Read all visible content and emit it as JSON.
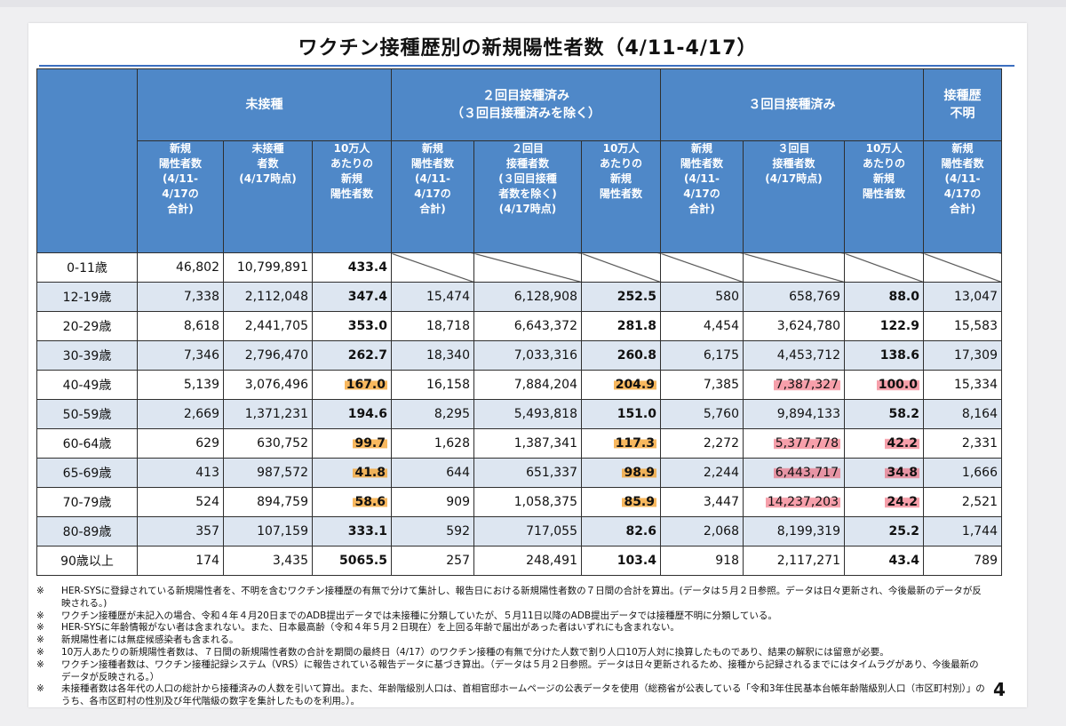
{
  "title": "ワクチン接種歴別の新規陽性者数（4/11-4/17）",
  "groups": [
    "未接種",
    "２回目接種済み\n（３回目接種済みを除く）",
    "３回目接種済み",
    "接種歴\n不明"
  ],
  "subheaders": [
    "新規\n陽性者数\n(4/11-\n4/17の\n合計)",
    "未接種\n者数\n(4/17時点)",
    "10万人\nあたりの\n新規\n陽性者数",
    "新規\n陽性者数\n(4/11-\n4/17の\n合計)",
    "２回目\n接種者数\n(３回目接種\n者数を除く)\n(4/17時点)",
    "10万人\nあたりの\n新規\n陽性者数",
    "新規\n陽性者数\n(4/11-\n4/17の\n合計)",
    "３回目\n接種者数\n(4/17時点)",
    "10万人\nあたりの\n新規\n陽性者数",
    "新規\n陽性者数\n(4/11-\n4/17の\n合計)"
  ],
  "rows": [
    {
      "age": "0-11歳",
      "v": [
        "46,802",
        "10,799,891",
        "433.4",
        "",
        "",
        "",
        "",
        "",
        "",
        ""
      ]
    },
    {
      "age": "12-19歳",
      "v": [
        "7,338",
        "2,112,048",
        "347.4",
        "15,474",
        "6,128,908",
        "252.5",
        "580",
        "658,769",
        "88.0",
        "13,047"
      ]
    },
    {
      "age": "20-29歳",
      "v": [
        "8,618",
        "2,441,705",
        "353.0",
        "18,718",
        "6,643,372",
        "281.8",
        "4,454",
        "3,624,780",
        "122.9",
        "15,583"
      ]
    },
    {
      "age": "30-39歳",
      "v": [
        "7,346",
        "2,796,470",
        "262.7",
        "18,340",
        "7,033,316",
        "260.8",
        "6,175",
        "4,453,712",
        "138.6",
        "17,309"
      ]
    },
    {
      "age": "40-49歳",
      "v": [
        "5,139",
        "3,076,496",
        "167.0",
        "16,158",
        "7,884,204",
        "204.9",
        "7,385",
        "7,387,327",
        "100.0",
        "15,334"
      ]
    },
    {
      "age": "50-59歳",
      "v": [
        "2,669",
        "1,371,231",
        "194.6",
        "8,295",
        "5,493,818",
        "151.0",
        "5,760",
        "9,894,133",
        "58.2",
        "8,164"
      ]
    },
    {
      "age": "60-64歳",
      "v": [
        "629",
        "630,752",
        "99.7",
        "1,628",
        "1,387,341",
        "117.3",
        "2,272",
        "5,377,778",
        "42.2",
        "2,331"
      ]
    },
    {
      "age": "65-69歳",
      "v": [
        "413",
        "987,572",
        "41.8",
        "644",
        "651,337",
        "98.9",
        "2,244",
        "6,443,717",
        "34.8",
        "1,666"
      ]
    },
    {
      "age": "70-79歳",
      "v": [
        "524",
        "894,759",
        "58.6",
        "909",
        "1,058,375",
        "85.9",
        "3,447",
        "14,237,203",
        "24.2",
        "2,521"
      ]
    },
    {
      "age": "80-89歳",
      "v": [
        "357",
        "107,159",
        "333.1",
        "592",
        "717,055",
        "82.6",
        "2,068",
        "8,199,319",
        "25.2",
        "1,744"
      ]
    },
    {
      "age": "90歳以上",
      "v": [
        "174",
        "3,435",
        "5065.5",
        "257",
        "248,491",
        "103.4",
        "918",
        "2,117,271",
        "43.4",
        "789"
      ]
    }
  ],
  "highlight_colors": {
    "orange": "#f5a028",
    "red": "#ee5064"
  },
  "notes": [
    "HER-SYSに登録されている新規陽性者を、不明を含むワクチン接種歴の有無で分けて集計し、報告日における新規陽性者数の７日間の合計を算出。(データは５月２日参照。データは日々更新され、今後最新のデータが反映される。)",
    "ワクチン接種歴が未記入の場合、令和４年４月20日までのADB提出データでは未接種に分類していたが、５月11日以降のADB提出データでは接種歴不明に分類している。",
    "HER-SYSに年齢情報がない者は含まれない。また、日本最高齢（令和４年５月２日現在）を上回る年齢で届出があった者はいずれにも含まれない。",
    "新規陽性者には無症候感染者も含まれる。",
    "10万人あたりの新規陽性者数は、７日間の新規陽性者数の合計を期間の最終日（4/17）のワクチン接種の有無で分けた人数で割り人口10万人対に換算したものであり、結果の解釈には留意が必要。",
    "ワクチン接種者数は、ワクチン接種記録システム（VRS）に報告されている報告データに基づき算出。（データは５月２日参照。データは日々更新されるため、接種から記録されるまでにはタイムラグがあり、今後最新のデータが反映される。）",
    "未接種者数は各年代の人口の総計から接種済みの人数を引いて算出。また、年齢階級別人口は、首相官邸ホームページの公表データを使用（総務省が公表している「令和3年住民基本台帳年齢階級別人口（市区町村別）」のうち、各市区町村の性別及び年代階級の数字を集計したものを利用。）。"
  ],
  "note_mark": "※",
  "page_number": "4"
}
